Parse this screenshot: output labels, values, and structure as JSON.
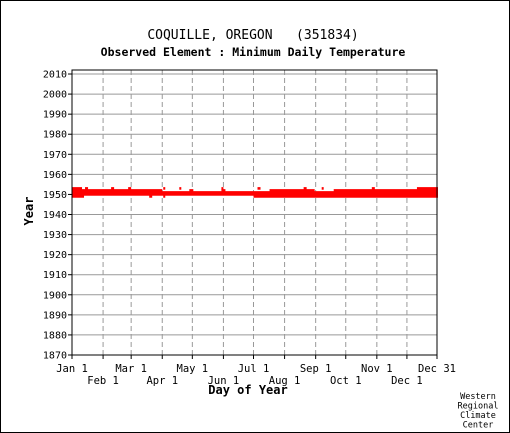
{
  "chart_data": {
    "type": "scatter",
    "title": "COQUILLE, OREGON   (351834)",
    "subtitle": "Observed Element : Minimum Daily Temperature",
    "xlabel": "Day of Year",
    "ylabel": "Year",
    "ylim": [
      1870,
      2012
    ],
    "yticks": [
      2010,
      2000,
      1990,
      1980,
      1970,
      1960,
      1950,
      1940,
      1930,
      1920,
      1910,
      1900,
      1890,
      1880,
      1870
    ],
    "xticks_upper": [
      {
        "label": "Jan 1",
        "day": 1
      },
      {
        "label": "Mar 1",
        "day": 60
      },
      {
        "label": "May 1",
        "day": 121
      },
      {
        "label": "Jul 1",
        "day": 182
      },
      {
        "label": "Sep 1",
        "day": 244
      },
      {
        "label": "Nov 1",
        "day": 305
      },
      {
        "label": "Dec 31",
        "day": 365
      }
    ],
    "xticks_lower": [
      {
        "label": "Feb 1",
        "day": 32
      },
      {
        "label": "Apr 1",
        "day": 91
      },
      {
        "label": "Jun 1",
        "day": 152
      },
      {
        "label": "Aug 1",
        "day": 213
      },
      {
        "label": "Oct 1",
        "day": 274
      },
      {
        "label": "Dec 1",
        "day": 335
      }
    ],
    "grid": true,
    "series_color": "#ff0000",
    "records": [
      {
        "year": 1953,
        "start_day": 1,
        "end_day": 10
      },
      {
        "year": 1953,
        "start_day": 14,
        "end_day": 16
      },
      {
        "year": 1953,
        "start_day": 40,
        "end_day": 42
      },
      {
        "year": 1953,
        "start_day": 57,
        "end_day": 59
      },
      {
        "year": 1953,
        "start_day": 92,
        "end_day": 93
      },
      {
        "year": 1953,
        "start_day": 108,
        "end_day": 109
      },
      {
        "year": 1953,
        "start_day": 150,
        "end_day": 151
      },
      {
        "year": 1953,
        "start_day": 186,
        "end_day": 188
      },
      {
        "year": 1953,
        "start_day": 232,
        "end_day": 234
      },
      {
        "year": 1953,
        "start_day": 250,
        "end_day": 251
      },
      {
        "year": 1953,
        "start_day": 300,
        "end_day": 302
      },
      {
        "year": 1953,
        "start_day": 345,
        "end_day": 365
      },
      {
        "year": 1952,
        "start_day": 1,
        "end_day": 90
      },
      {
        "year": 1952,
        "start_day": 118,
        "end_day": 121
      },
      {
        "year": 1952,
        "start_day": 150,
        "end_day": 153
      },
      {
        "year": 1952,
        "start_day": 198,
        "end_day": 242
      },
      {
        "year": 1952,
        "start_day": 262,
        "end_day": 365
      },
      {
        "year": 1951,
        "start_day": 1,
        "end_day": 365
      },
      {
        "year": 1950,
        "start_day": 1,
        "end_day": 365
      },
      {
        "year": 1949,
        "start_day": 1,
        "end_day": 12
      },
      {
        "year": 1949,
        "start_day": 78,
        "end_day": 80
      },
      {
        "year": 1949,
        "start_day": 92,
        "end_day": 93
      },
      {
        "year": 1949,
        "start_day": 182,
        "end_day": 365
      }
    ]
  },
  "credit": [
    "Western",
    "Regional",
    "Climate",
    "Center"
  ]
}
